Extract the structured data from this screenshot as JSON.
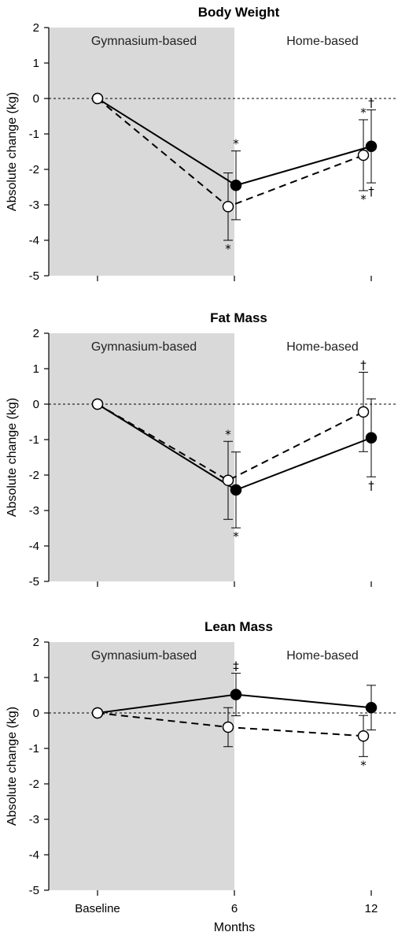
{
  "chart_data": [
    {
      "type": "line",
      "title": "Body Weight",
      "ylabel": "Absolute change (kg)",
      "ylim": [
        -5,
        2
      ],
      "yticks": [
        "2",
        "1",
        "0",
        "-1",
        "-2",
        "-3",
        "-4",
        "-5"
      ],
      "regions": [
        "Gymnasium-based",
        "Home-based"
      ],
      "categories": [
        "Baseline",
        "6",
        "12"
      ],
      "series": [
        {
          "marker": "filled",
          "line": "solid",
          "points": [
            {
              "cat": 0,
              "y": 0,
              "err": 0,
              "above": "",
              "below": ""
            },
            {
              "cat": 1,
              "y": -2.45,
              "err": 0.97,
              "above": "*",
              "below": ""
            },
            {
              "cat": 2,
              "y": -1.35,
              "err": 1.03,
              "above": "†",
              "below": "†"
            }
          ]
        },
        {
          "marker": "open",
          "line": "dashed",
          "points": [
            {
              "cat": 0,
              "y": 0,
              "err": 0,
              "above": "",
              "below": ""
            },
            {
              "cat": 1,
              "y": -3.05,
              "err": 0.95,
              "above": "",
              "below": "*"
            },
            {
              "cat": 2,
              "y": -1.6,
              "err": 1.0,
              "above": "*",
              "below": "*"
            }
          ]
        }
      ]
    },
    {
      "type": "line",
      "title": "Fat Mass",
      "ylabel": "Absolute change (kg)",
      "ylim": [
        -5,
        2
      ],
      "yticks": [
        "2",
        "1",
        "0",
        "-1",
        "-2",
        "-3",
        "-4",
        "-5"
      ],
      "regions": [
        "Gymnasium-based",
        "Home-based"
      ],
      "categories": [
        "Baseline",
        "6",
        "12"
      ],
      "series": [
        {
          "marker": "filled",
          "line": "solid",
          "points": [
            {
              "cat": 0,
              "y": 0,
              "err": 0,
              "above": "",
              "below": ""
            },
            {
              "cat": 1,
              "y": -2.42,
              "err": 1.07,
              "above": "",
              "below": "*"
            },
            {
              "cat": 2,
              "y": -0.95,
              "err": 1.1,
              "above": "",
              "below": "†"
            }
          ]
        },
        {
          "marker": "open",
          "line": "dashed",
          "points": [
            {
              "cat": 0,
              "y": 0,
              "err": 0,
              "above": "",
              "below": ""
            },
            {
              "cat": 1,
              "y": -2.15,
              "err": 1.1,
              "above": "*",
              "below": ""
            },
            {
              "cat": 2,
              "y": -0.22,
              "err": 1.12,
              "above": "†",
              "below": ""
            }
          ]
        }
      ]
    },
    {
      "type": "line",
      "title": "Lean Mass",
      "ylabel": "Absolute change (kg)",
      "xlabel": "Months",
      "ylim": [
        -5,
        2
      ],
      "yticks": [
        "2",
        "1",
        "0",
        "-1",
        "-2",
        "-3",
        "-4",
        "-5"
      ],
      "regions": [
        "Gymnasium-based",
        "Home-based"
      ],
      "categories": [
        "Baseline",
        "6",
        "12"
      ],
      "series": [
        {
          "marker": "filled",
          "line": "solid",
          "points": [
            {
              "cat": 0,
              "y": 0,
              "err": 0,
              "above": "",
              "below": ""
            },
            {
              "cat": 1,
              "y": 0.52,
              "err": 0.6,
              "above": "‡",
              "below": ""
            },
            {
              "cat": 2,
              "y": 0.15,
              "err": 0.63,
              "above": "",
              "below": ""
            }
          ]
        },
        {
          "marker": "open",
          "line": "dashed",
          "points": [
            {
              "cat": 0,
              "y": 0,
              "err": 0,
              "above": "",
              "below": ""
            },
            {
              "cat": 1,
              "y": -0.4,
              "err": 0.55,
              "above": "",
              "below": ""
            },
            {
              "cat": 2,
              "y": -0.65,
              "err": 0.58,
              "above": "",
              "below": "*"
            }
          ]
        }
      ]
    }
  ]
}
